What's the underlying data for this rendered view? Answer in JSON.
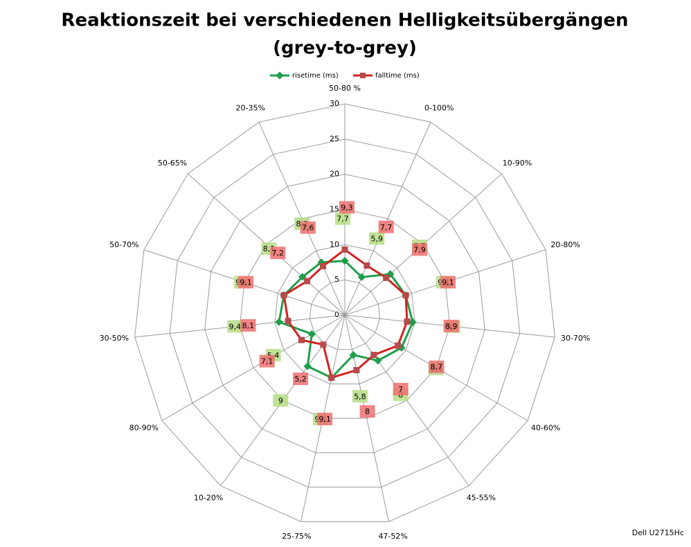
{
  "chart_data": {
    "type": "radar",
    "title": [
      "Reaktionszeit bei verschiedenen Helligkeitsübergängen",
      "(grey-to-grey)"
    ],
    "footer": "Dell U2715Hc",
    "categories": [
      "50-80 %",
      "0-100%",
      "10-90%",
      "20-80%",
      "30-70%",
      "40-60%",
      "45-55%",
      "47-52%",
      "25-75%",
      "10-20%",
      "80-90%",
      "30-50%",
      "50-70%",
      "50-65%",
      "20-35%"
    ],
    "series": [
      {
        "name": "risetime (ms)",
        "color": "#1e9e4a",
        "label_color": "#b5dd85",
        "values": [
          7.7,
          5.9,
          8.7,
          9.1,
          9.7,
          9.3,
          8,
          5.8,
          9.1,
          9,
          5.4,
          9.4,
          9.1,
          8.1,
          8.2
        ],
        "value_labels": [
          "7,7",
          "5,9",
          "8,7",
          "9,1",
          "9,7",
          "9,3",
          "8",
          "5,8",
          "9,1",
          "9",
          "5,4",
          "9,4",
          "9,1",
          "8,1",
          "8,2"
        ]
      },
      {
        "name": "falltime (ms)",
        "color": "#d42020",
        "marker_color": "#b84a4a",
        "label_color": "#ee6f6f",
        "values": [
          9.3,
          7.7,
          7.9,
          9.1,
          8.9,
          8.7,
          7,
          8,
          9.1,
          5.2,
          7.1,
          8.1,
          9.1,
          7.2,
          7.6
        ],
        "value_labels": [
          "9,3",
          "7,7",
          "7,9",
          "9,1",
          "8,9",
          "8,7",
          "7",
          "8",
          "9,1",
          "5,2",
          "7,1",
          "8,1",
          "9,1",
          "7,2",
          "7,6"
        ]
      }
    ],
    "ylim": [
      0,
      30
    ],
    "yticks": [
      0,
      5,
      10,
      15,
      20,
      25,
      30
    ],
    "grid": true,
    "legend": "top"
  }
}
